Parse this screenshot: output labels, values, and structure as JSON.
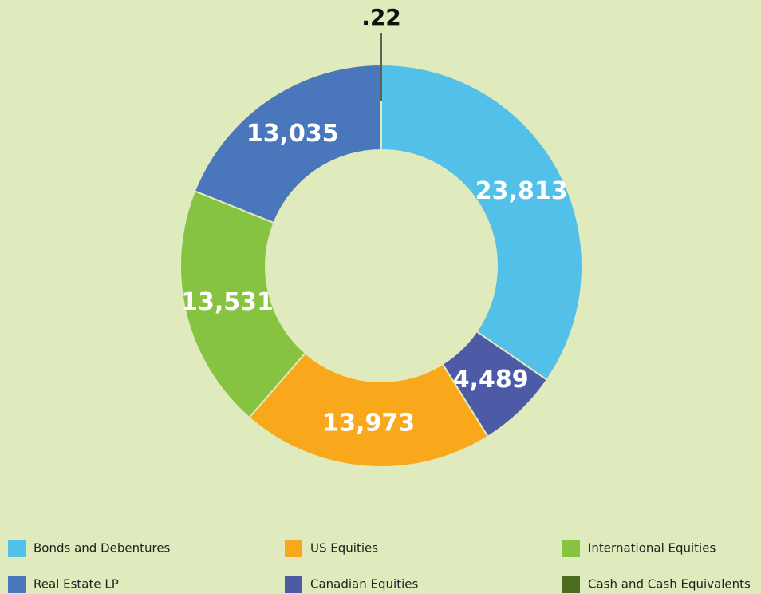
{
  "chart_data": {
    "type": "donut",
    "categories": [
      "Bonds and Debentures",
      "Canadian Equities",
      "US Equities",
      "International Equities",
      "Real Estate LP",
      "Cash and Cash Equivalents"
    ],
    "values": [
      23813,
      4489,
      13973,
      13531,
      13035,
      0.22
    ],
    "value_labels": [
      "23,813",
      "4,489",
      "13,973",
      "13,531",
      "13,035",
      ".22"
    ],
    "colors": [
      "#52c0e8",
      "#4d5aa5",
      "#f9a81c",
      "#86c341",
      "#4a76bb",
      "#4e6b22"
    ]
  }
}
